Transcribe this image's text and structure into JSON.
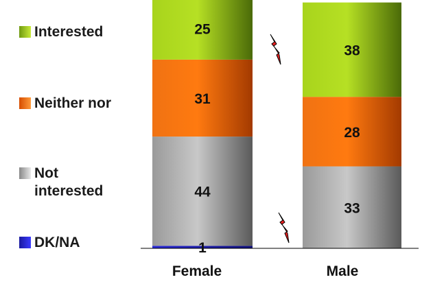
{
  "chart_data": {
    "type": "bar",
    "stacked": true,
    "categories": [
      "Female",
      "Male"
    ],
    "series": [
      {
        "name": "DK/NA",
        "values": [
          1,
          0
        ],
        "color": "#1f1fcf"
      },
      {
        "name": "Not interested",
        "values": [
          44,
          33
        ],
        "color": "#a8a8a8"
      },
      {
        "name": "Neither nor",
        "values": [
          31,
          28
        ],
        "color": "#f26a14"
      },
      {
        "name": "Interested",
        "values": [
          25,
          38
        ],
        "color": "#8fbf1a"
      }
    ],
    "value_labels": [
      [
        "1",
        "44",
        "31",
        "25"
      ],
      [
        "",
        "33",
        "28",
        "38"
      ]
    ],
    "axis_break_marks": true,
    "legend_position": "left",
    "grid": false,
    "ylim": [
      0,
      100
    ]
  },
  "legend": {
    "items": [
      {
        "label": "Interested",
        "color": "#8fbf1a"
      },
      {
        "label": "Neither nor",
        "color": "#f26a14"
      },
      {
        "label": "Not\ninterested",
        "color": "#a8a8a8"
      },
      {
        "label": "DK/NA",
        "color": "#1f1fcf"
      }
    ]
  }
}
